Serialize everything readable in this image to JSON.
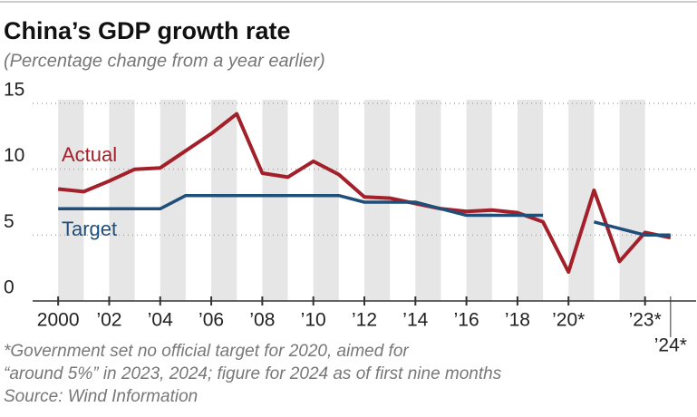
{
  "chart_data": {
    "type": "line",
    "title": "China’s GDP growth rate",
    "subtitle": "(Percentage change from a year earlier)",
    "x": [
      2000,
      2001,
      2002,
      2003,
      2004,
      2005,
      2006,
      2007,
      2008,
      2009,
      2010,
      2011,
      2012,
      2013,
      2014,
      2015,
      2016,
      2017,
      2018,
      2019,
      2020,
      2021,
      2022,
      2023,
      2024
    ],
    "series": [
      {
        "name": "Actual",
        "color": "#a3202a",
        "values": [
          8.5,
          8.3,
          9.1,
          10.0,
          10.1,
          11.4,
          12.7,
          14.2,
          9.7,
          9.4,
          10.6,
          9.6,
          7.9,
          7.8,
          7.4,
          7.0,
          6.8,
          6.9,
          6.7,
          6.0,
          2.2,
          8.4,
          3.0,
          5.2,
          4.8
        ]
      },
      {
        "name": "Target",
        "color": "#1f4e79",
        "values": [
          7,
          7,
          7,
          7,
          7,
          8,
          8,
          8,
          8,
          8,
          8,
          8,
          7.5,
          7.5,
          7.5,
          7,
          6.5,
          6.5,
          6.5,
          6.5,
          null,
          6,
          5.5,
          5,
          5
        ]
      }
    ],
    "xlim": [
      1999,
      2025
    ],
    "xticks": [
      2000,
      {
        "value": 2002,
        "label": "’02"
      },
      {
        "value": 2004,
        "label": "’04"
      },
      {
        "value": 2006,
        "label": "’06"
      },
      {
        "value": 2008,
        "label": "’08"
      },
      {
        "value": 2010,
        "label": "’10"
      },
      {
        "value": 2012,
        "label": "’12"
      },
      {
        "value": 2014,
        "label": "’14"
      },
      {
        "value": 2016,
        "label": "’16"
      },
      {
        "value": 2018,
        "label": "’18"
      },
      {
        "value": 2020,
        "label": "’20*"
      },
      {
        "value": 2023,
        "label": "’23*"
      },
      {
        "value": 2024,
        "label": "’24*"
      }
    ],
    "ylim": [
      0,
      15
    ],
    "yticks": [
      0,
      5,
      10,
      15
    ],
    "grid": true,
    "footnote": [
      "*Government set no official target for 2020, aimed for",
      "“around 5%” in 2023, 2024; figure for 2024 as of first nine months"
    ],
    "source": "Source: Wind Information"
  }
}
